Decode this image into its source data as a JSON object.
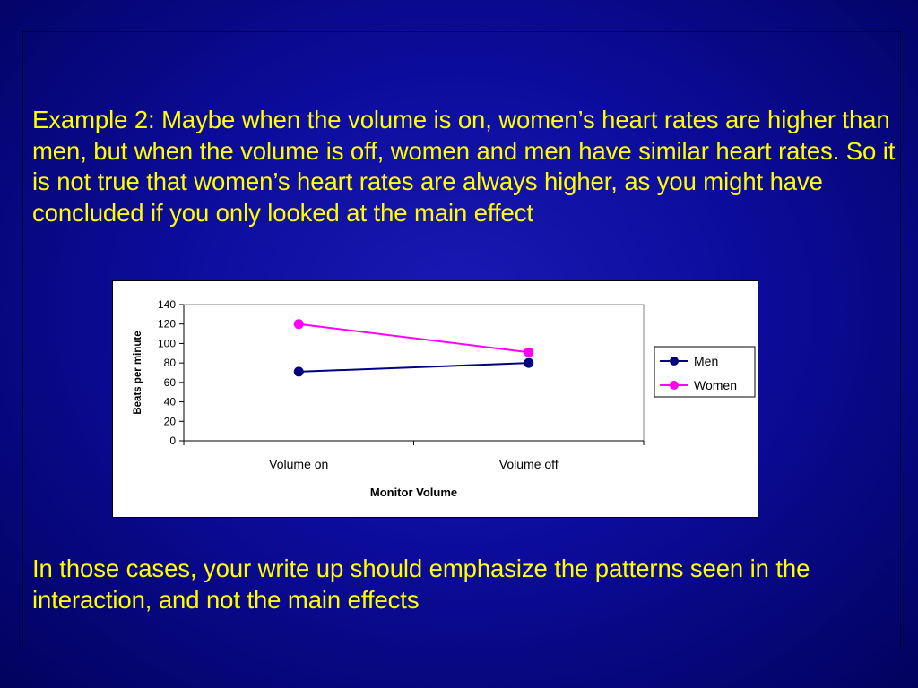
{
  "slide": {
    "paragraph1": "Example 2: Maybe when the volume is on, women’s heart rates are higher than men, but when the volume is off, women and men have similar heart rates. So it is not true that women’s heart rates are always higher, as you might have concluded if you only looked at the main effect",
    "paragraph2": "In those cases, your write up should emphasize the patterns seen in the interaction, and not the main effects",
    "text_color": "#ffff00",
    "background_color": "#0c0c9c"
  },
  "chart_data": {
    "type": "line",
    "categories": [
      "Volume on",
      "Volume off"
    ],
    "series": [
      {
        "name": "Men",
        "values": [
          71,
          80
        ],
        "color": "#000080",
        "marker": "circle"
      },
      {
        "name": "Women",
        "values": [
          120,
          91
        ],
        "color": "#ff00ff",
        "marker": "circle"
      }
    ],
    "xlabel": "Monitor Volume",
    "ylabel": "Beats per minute",
    "ylim": [
      0,
      140
    ],
    "yticks": [
      "0",
      "20",
      "40",
      "60",
      "80",
      "100",
      "120",
      "140"
    ],
    "grid": false,
    "legend": "right"
  }
}
